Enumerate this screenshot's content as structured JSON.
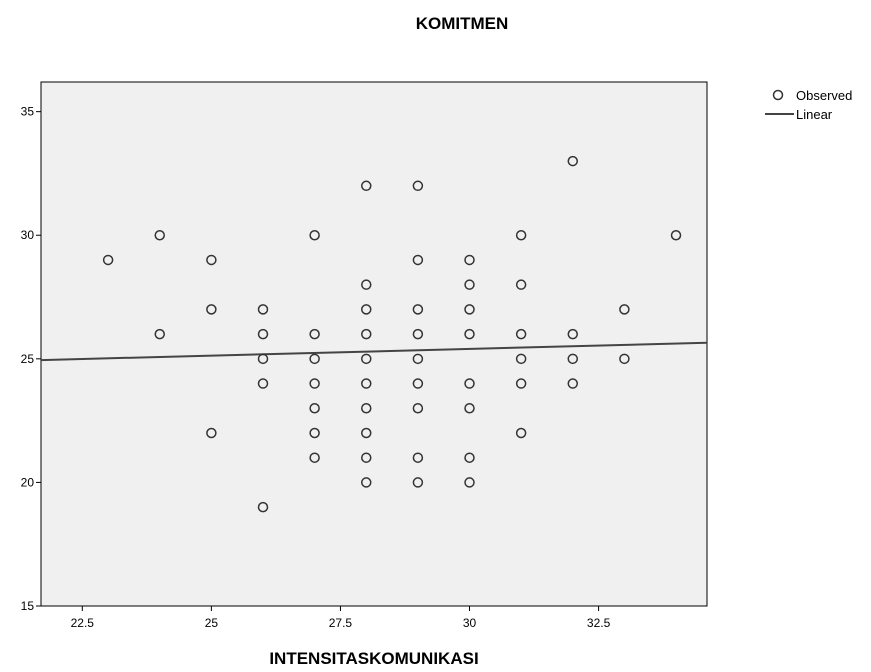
{
  "chart_data": {
    "type": "scatter",
    "title": "KOMITMEN",
    "xlabel": "INTENSITASKOMUNIKASI",
    "ylabel": "",
    "xlim": [
      21.7,
      34.6
    ],
    "ylim": [
      15,
      36.2
    ],
    "x_ticks": [
      22.5,
      25,
      27.5,
      30,
      32.5
    ],
    "x_tick_labels": [
      "22.5",
      "25",
      "27.5",
      "30",
      "32.5"
    ],
    "y_ticks": [
      15,
      20,
      25,
      30,
      35
    ],
    "y_tick_labels": [
      "15",
      "20",
      "25",
      "30",
      "35"
    ],
    "grid": false,
    "legend": "top-right",
    "series": [
      {
        "name": "Observed",
        "marker": "open-circle",
        "points": [
          [
            23,
            29
          ],
          [
            24,
            30
          ],
          [
            24,
            26
          ],
          [
            25,
            29
          ],
          [
            25,
            27
          ],
          [
            25,
            22
          ],
          [
            26,
            27
          ],
          [
            26,
            26
          ],
          [
            26,
            25
          ],
          [
            26,
            24
          ],
          [
            26,
            19
          ],
          [
            27,
            30
          ],
          [
            27,
            26
          ],
          [
            27,
            25
          ],
          [
            27,
            24
          ],
          [
            27,
            23
          ],
          [
            27,
            22
          ],
          [
            27,
            21
          ],
          [
            28,
            32
          ],
          [
            28,
            28
          ],
          [
            28,
            27
          ],
          [
            28,
            26
          ],
          [
            28,
            25
          ],
          [
            28,
            24
          ],
          [
            28,
            23
          ],
          [
            28,
            22
          ],
          [
            28,
            21
          ],
          [
            28,
            20
          ],
          [
            29,
            32
          ],
          [
            29,
            29
          ],
          [
            29,
            27
          ],
          [
            29,
            26
          ],
          [
            29,
            25
          ],
          [
            29,
            24
          ],
          [
            29,
            23
          ],
          [
            29,
            21
          ],
          [
            29,
            20
          ],
          [
            30,
            29
          ],
          [
            30,
            28
          ],
          [
            30,
            27
          ],
          [
            30,
            26
          ],
          [
            30,
            24
          ],
          [
            30,
            23
          ],
          [
            30,
            21
          ],
          [
            30,
            20
          ],
          [
            31,
            30
          ],
          [
            31,
            28
          ],
          [
            31,
            26
          ],
          [
            31,
            25
          ],
          [
            31,
            24
          ],
          [
            31,
            22
          ],
          [
            32,
            33
          ],
          [
            32,
            26
          ],
          [
            32,
            25
          ],
          [
            32,
            24
          ],
          [
            33,
            27
          ],
          [
            33,
            25
          ],
          [
            34,
            30
          ]
        ]
      },
      {
        "name": "Linear",
        "marker": "line",
        "points": [
          [
            21.7,
            24.95
          ],
          [
            34.6,
            25.65
          ]
        ]
      }
    ]
  },
  "colors": {
    "plot_background": "#f0f0f0",
    "marker_stroke": "#333333",
    "line": "#444444",
    "axis": "#000000"
  }
}
